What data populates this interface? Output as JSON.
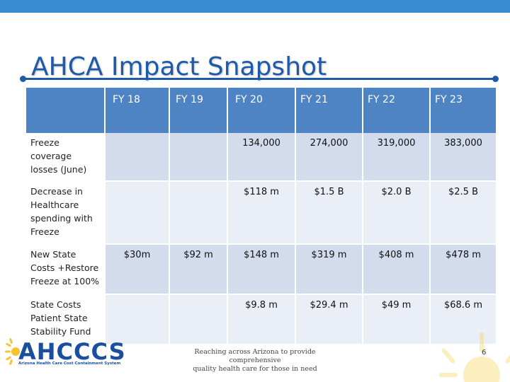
{
  "slide": {
    "title": "AHCA Impact Snapshot",
    "page_number": "6"
  },
  "table": {
    "headers": [
      "",
      "FY 18",
      "FY 19",
      "FY 20",
      "FY 21",
      "FY 22",
      "FY 23"
    ],
    "rows": [
      {
        "label": "Freeze coverage losses (June)",
        "values": [
          "",
          "",
          "134,000",
          "274,000",
          "319,000",
          "383,000"
        ]
      },
      {
        "label": "Decrease in Healthcare spending with Freeze",
        "values": [
          "",
          "",
          "$118 m",
          "$1.5 B",
          "$2.0 B",
          "$2.5 B"
        ]
      },
      {
        "label": "New State Costs +Restore Freeze at 100%",
        "values": [
          "$30m",
          "$92 m",
          "$148 m",
          "$319 m",
          "$408 m",
          "$478 m"
        ]
      },
      {
        "label": "State Costs Patient State Stability Fund",
        "values": [
          "",
          "",
          "$9.8 m",
          "$29.4 m",
          "$49 m",
          "$68.6 m"
        ]
      }
    ]
  },
  "footer": {
    "logo_text": "AHCCCS",
    "logo_subtext": "Arizona Health Care Cost Containment System",
    "tagline_line1": "Reaching across Arizona to provide comprehensive",
    "tagline_line2": "quality health care for those in need"
  },
  "colors": {
    "header_blue": "#4f84c4",
    "title_blue": "#1f5aa8",
    "row_dark": "#d3dcec",
    "row_light": "#eaeef6",
    "accent_yellow": "#f5c430"
  },
  "icons": [
    "sun-icon",
    "sunburst-decoration"
  ]
}
